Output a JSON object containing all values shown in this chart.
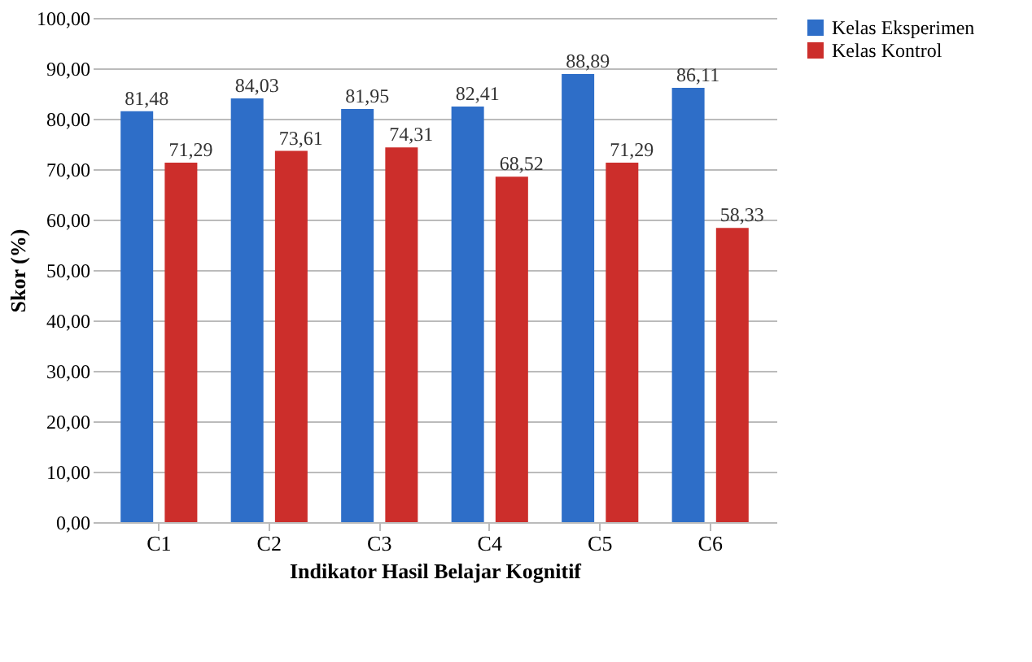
{
  "chart_data": {
    "type": "bar",
    "xlabel": "Indikator  Hasil Belajar Kognitif",
    "ylabel": "Skor (%)",
    "categories": [
      "C1",
      "C2",
      "C3",
      "C4",
      "C5",
      "C6"
    ],
    "series": [
      {
        "name": "Kelas Eksperimen",
        "color": "#2e6ec8",
        "values": [
          81.48,
          84.03,
          81.95,
          82.41,
          88.89,
          86.11
        ],
        "value_labels": [
          "81,48",
          "84,03",
          "81,95",
          "82,41",
          "88,89",
          "86,11"
        ]
      },
      {
        "name": "Kelas Kontrol",
        "color": "#cc2e2b",
        "values": [
          71.29,
          73.61,
          74.31,
          68.52,
          71.29,
          58.33
        ],
        "value_labels": [
          "71,29",
          "73,61",
          "74,31",
          "68,52",
          "71,29",
          "58,33"
        ]
      }
    ],
    "ylim": [
      0,
      100
    ],
    "yticks": [
      {
        "value": 0,
        "label": "0,00"
      },
      {
        "value": 10,
        "label": "10,00"
      },
      {
        "value": 20,
        "label": "20,00"
      },
      {
        "value": 30,
        "label": "30,00"
      },
      {
        "value": 40,
        "label": "40,00"
      },
      {
        "value": 50,
        "label": "50,00"
      },
      {
        "value": 60,
        "label": "60,00"
      },
      {
        "value": 70,
        "label": "70,00"
      },
      {
        "value": 80,
        "label": "80,00"
      },
      {
        "value": 90,
        "label": "90,00"
      },
      {
        "value": 100,
        "label": "100,00"
      }
    ],
    "grid": "y",
    "legend": "right"
  }
}
